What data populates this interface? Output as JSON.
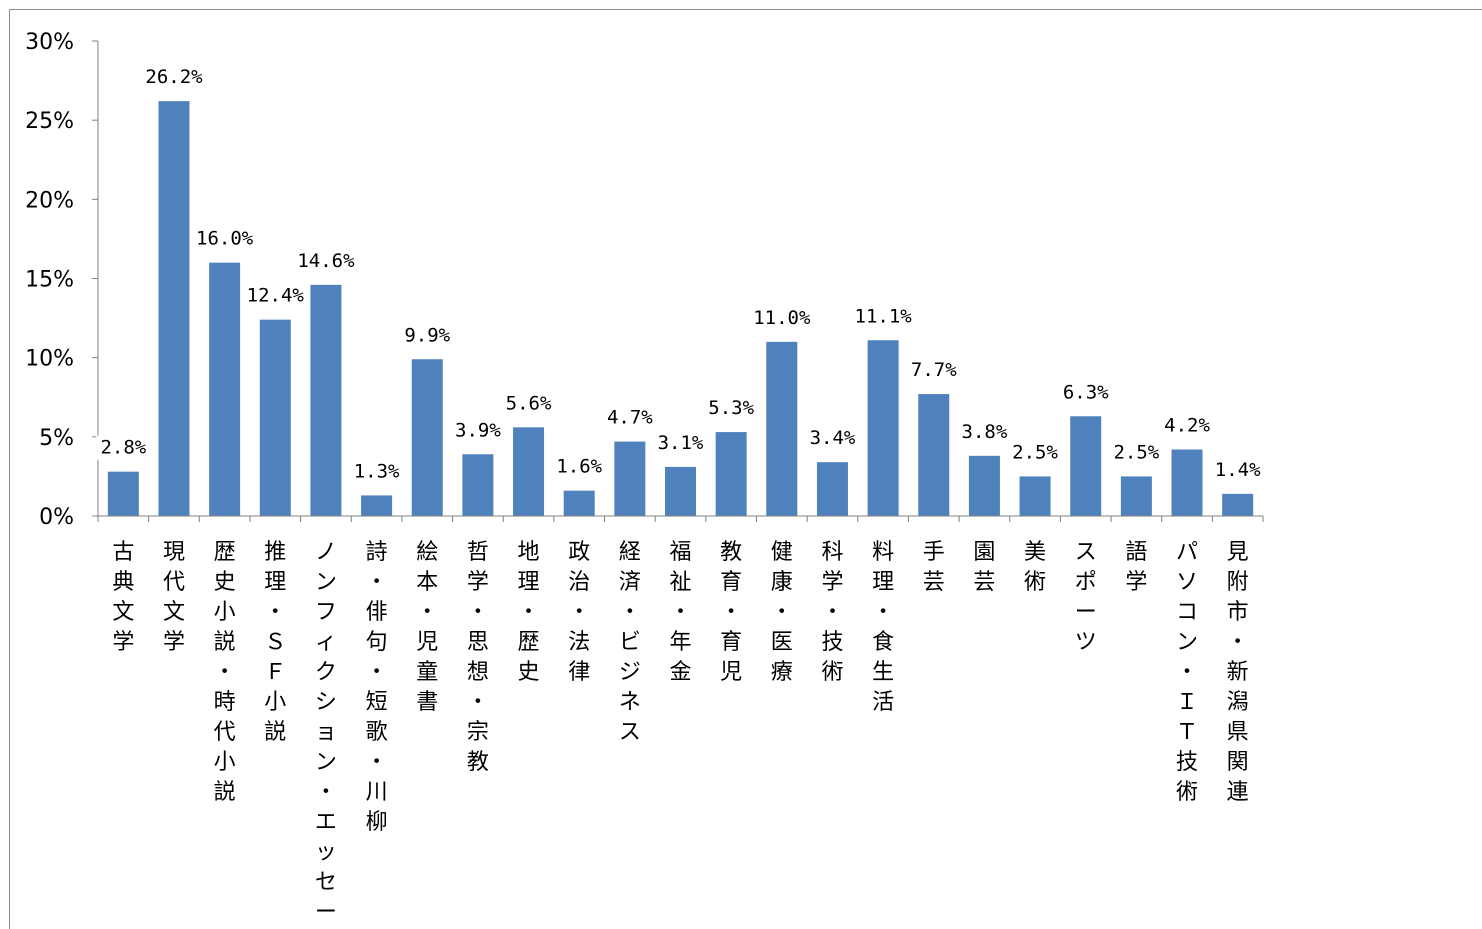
{
  "chart_data": {
    "type": "bar",
    "title": "",
    "xlabel": "",
    "ylabel": "",
    "ylim": [
      0,
      30
    ],
    "yticks": [
      0,
      5,
      10,
      15,
      20,
      25,
      30
    ],
    "ytick_labels": [
      "0%",
      "5%",
      "10%",
      "15%",
      "20%",
      "25%",
      "30%"
    ],
    "grid": false,
    "legend": "none",
    "bar_color": "#4f81bd",
    "categories": [
      "古典文学",
      "現代文学",
      "歴史小説・時代小説",
      "推理・ＳＦ小説",
      "ノンフィクション・エッセー",
      "詩・俳句・短歌・川柳",
      "絵本・児童書",
      "哲学・思想・宗教",
      "地理・歴史",
      "政治・法律",
      "経済・ビジネス",
      "福祉・年金",
      "教育・育児",
      "健康・医療",
      "科学・技術",
      "料理・食生活",
      "手芸",
      "園芸",
      "美術",
      "スポーツ",
      "語学",
      "パソコン・ＩＴ技術",
      "見附市・新潟県関連"
    ],
    "values": [
      2.8,
      26.2,
      16.0,
      12.4,
      14.6,
      1.3,
      9.9,
      3.9,
      5.6,
      1.6,
      4.7,
      3.1,
      5.3,
      11.0,
      3.4,
      11.1,
      7.7,
      3.8,
      2.5,
      6.3,
      2.5,
      4.2,
      1.4
    ],
    "data_labels": [
      "2.8%",
      "26.2%",
      "16.0%",
      "12.4%",
      "14.6%",
      "1.3%",
      "9.9%",
      "3.9%",
      "5.6%",
      "1.6%",
      "4.7%",
      "3.1%",
      "5.3%",
      "11.0%",
      "3.4%",
      "11.1%",
      "7.7%",
      "3.8%",
      "2.5%",
      "6.3%",
      "2.5%",
      "4.2%",
      "1.4%"
    ]
  }
}
